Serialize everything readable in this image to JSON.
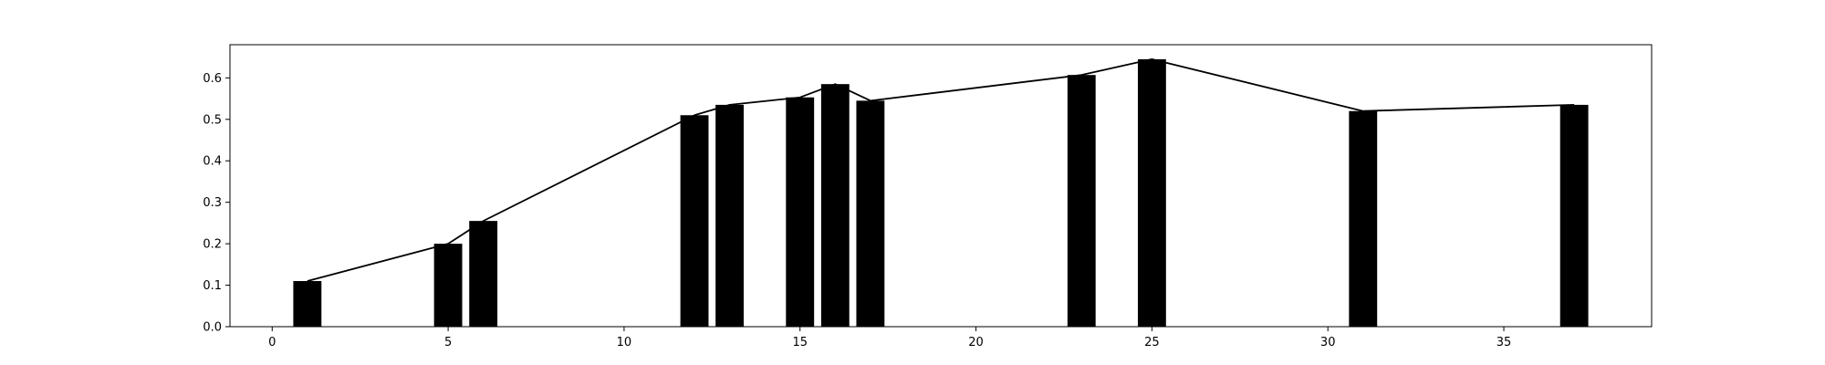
{
  "chart_data": {
    "type": "bar",
    "title": "",
    "xlabel": "",
    "ylabel": "",
    "xlim": [
      -1.2,
      39.2
    ],
    "ylim": [
      0,
      0.68
    ],
    "grid": false,
    "bar_color": "#000000",
    "line_color": "#000000",
    "x": [
      1,
      5,
      6,
      12,
      13,
      15,
      16,
      17,
      23,
      25,
      31,
      37
    ],
    "values": [
      0.11,
      0.2,
      0.255,
      0.51,
      0.535,
      0.553,
      0.585,
      0.545,
      0.607,
      0.645,
      0.52,
      0.535
    ],
    "line_x": [
      1,
      5,
      6,
      12,
      13,
      15,
      16,
      17,
      23,
      25,
      31,
      37
    ],
    "line_y": [
      0.11,
      0.2,
      0.255,
      0.51,
      0.535,
      0.553,
      0.585,
      0.545,
      0.607,
      0.645,
      0.52,
      0.535
    ],
    "x_ticks": [
      0,
      5,
      10,
      15,
      20,
      25,
      30,
      35
    ],
    "y_ticks": [
      0.0,
      0.1,
      0.2,
      0.3,
      0.4,
      0.5,
      0.6
    ],
    "x_tick_labels": [
      "0",
      "5",
      "10",
      "15",
      "20",
      "25",
      "30",
      "35"
    ],
    "y_tick_labels": [
      "0.0",
      "0.1",
      "0.2",
      "0.3",
      "0.4",
      "0.5",
      "0.6"
    ]
  }
}
